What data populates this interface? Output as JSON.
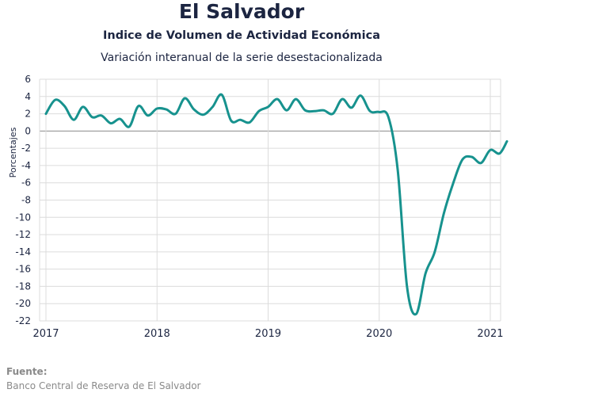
{
  "header": {
    "title": "El Salvador",
    "subtitle": "Indice de Volumen de  Actividad Económica",
    "subtitle2": "Variación interanual de la serie desestacionalizada"
  },
  "footer": {
    "source_label": "Fuente:",
    "source_text": "Banco Central de Reserva de El Salvador"
  },
  "chart_data": {
    "type": "line",
    "title": "El Salvador",
    "xlabel": "",
    "ylabel": "Porcentajes",
    "ylim": [
      -22,
      6
    ],
    "xlim": [
      2017,
      2021.15
    ],
    "y_ticks": [
      "6",
      "4",
      "2",
      "0",
      "-2",
      "-4",
      "-6",
      "-8",
      "-10",
      "-12",
      "-14",
      "-16",
      "-18",
      "-20",
      "-22"
    ],
    "x_ticks": [
      "2017",
      "2018",
      "2019",
      "2020",
      "2021"
    ],
    "grid": true,
    "line_color": "#17928e",
    "series": [
      {
        "name": "",
        "x": [
          2017.0,
          2017.083,
          2017.167,
          2017.25,
          2017.333,
          2017.417,
          2017.5,
          2017.583,
          2017.667,
          2017.75,
          2017.833,
          2017.917,
          2018.0,
          2018.083,
          2018.167,
          2018.25,
          2018.333,
          2018.417,
          2018.5,
          2018.583,
          2018.667,
          2018.75,
          2018.833,
          2018.917,
          2019.0,
          2019.083,
          2019.167,
          2019.25,
          2019.333,
          2019.417,
          2019.5,
          2019.583,
          2019.667,
          2019.75,
          2019.833,
          2019.917,
          2020.0,
          2020.083,
          2020.167,
          2020.25,
          2020.333,
          2020.417,
          2020.5,
          2020.583,
          2020.667,
          2020.75,
          2020.833,
          2020.917,
          2021.0,
          2021.083,
          2021.15
        ],
        "values": [
          2.0,
          3.6,
          2.9,
          1.3,
          2.8,
          1.6,
          1.8,
          0.9,
          1.4,
          0.5,
          2.9,
          1.8,
          2.6,
          2.5,
          2.0,
          3.8,
          2.5,
          1.9,
          2.8,
          4.2,
          1.2,
          1.3,
          1.0,
          2.3,
          2.8,
          3.7,
          2.4,
          3.7,
          2.4,
          2.3,
          2.4,
          2.0,
          3.7,
          2.7,
          4.1,
          2.3,
          2.2,
          1.6,
          -4.5,
          -18.0,
          -21.2,
          -16.5,
          -14.0,
          -9.5,
          -6.0,
          -3.3,
          -3.0,
          -3.7,
          -2.2,
          -2.6,
          -1.2
        ]
      }
    ]
  }
}
